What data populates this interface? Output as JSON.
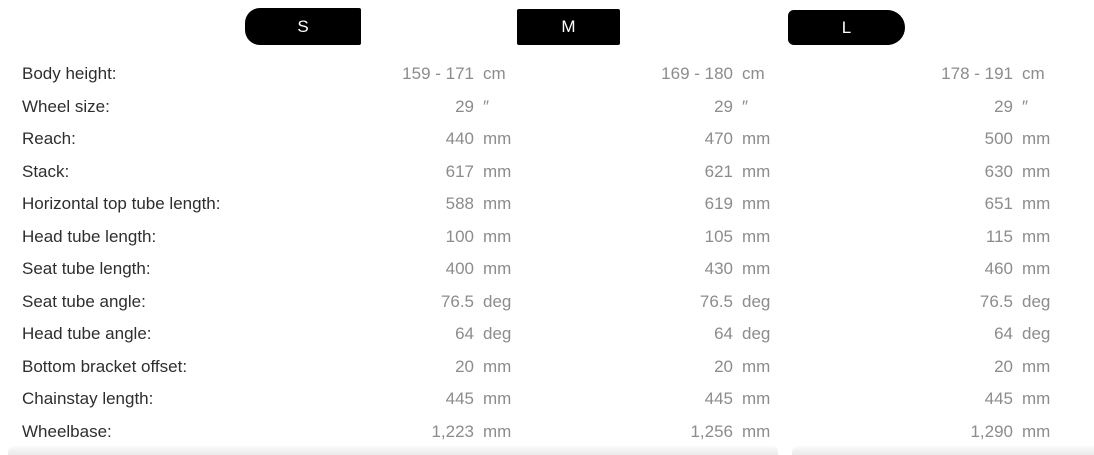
{
  "table": {
    "size_tabs": [
      "S",
      "M",
      "L"
    ],
    "rows": [
      {
        "label": "Body height:",
        "unit": "cm",
        "values": [
          "159 - 171",
          "169 - 180",
          "178 - 191"
        ]
      },
      {
        "label": "Wheel size:",
        "unit": "″",
        "values": [
          "29",
          "29",
          "29"
        ]
      },
      {
        "label": "Reach:",
        "unit": "mm",
        "values": [
          "440",
          "470",
          "500"
        ]
      },
      {
        "label": "Stack:",
        "unit": "mm",
        "values": [
          "617",
          "621",
          "630"
        ]
      },
      {
        "label": "Horizontal top tube length:",
        "unit": "mm",
        "values": [
          "588",
          "619",
          "651"
        ]
      },
      {
        "label": "Head tube length:",
        "unit": "mm",
        "values": [
          "100",
          "105",
          "115"
        ]
      },
      {
        "label": "Seat tube length:",
        "unit": "mm",
        "values": [
          "400",
          "430",
          "460"
        ]
      },
      {
        "label": "Seat tube angle:",
        "unit": "deg",
        "values": [
          "76.5",
          "76.5",
          "76.5"
        ]
      },
      {
        "label": "Head tube angle:",
        "unit": "deg",
        "values": [
          "64",
          "64",
          "64"
        ]
      },
      {
        "label": "Bottom bracket offset:",
        "unit": "mm",
        "values": [
          "20",
          "20",
          "20"
        ]
      },
      {
        "label": "Chainstay length:",
        "unit": "mm",
        "values": [
          "445",
          "445",
          "445"
        ]
      },
      {
        "label": "Wheelbase:",
        "unit": "mm",
        "values": [
          "1,223",
          "1,256",
          "1,290"
        ]
      }
    ]
  },
  "colors": {
    "tab_background": "#000000",
    "tab_text": "#ffffff",
    "label_text": "#2e2e2e",
    "value_text": "#8c8c8c",
    "bottom_band": "#eaeaea"
  }
}
